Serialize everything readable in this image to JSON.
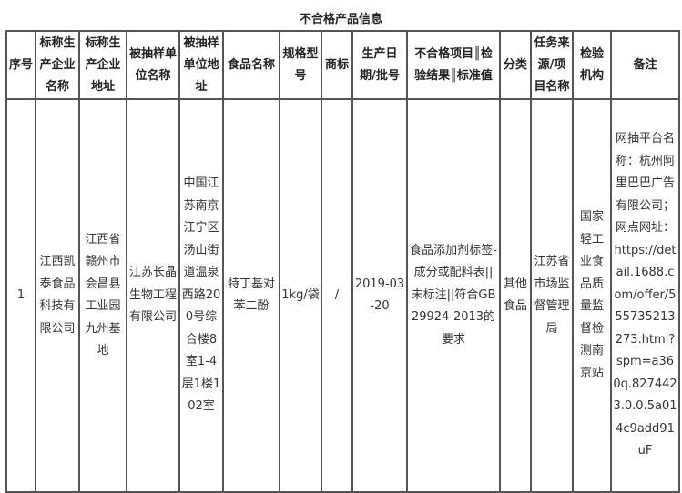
{
  "title": "不合格产品信息",
  "headers": [
    "序号",
    "标称生产企业名称",
    "标称生产企业地址",
    "被抽样单位名称",
    "被抽样单位地址",
    "食品名称",
    "规格型号",
    "商标",
    "生产日期/批号",
    "不合格项目║检验结果║标准值",
    "分类",
    "任务来源/项目名称",
    "检验机构",
    "备注"
  ],
  "rows": [
    [
      "1",
      "江西凯泰食品科技有限公司",
      "江西省赣州市会昌县工业园九州基地",
      "江苏长晶生物工程有限公司",
      "中国江苏南京江宁区汤山街道温泉西路200号综合楼8室1-4层1楼102室",
      "特丁基对苯二酚",
      "1kg/袋",
      "/",
      "2019-03-20",
      "食品添加剂标签-成分或配料表||未标注||符合GB29924-2013的要求",
      "其他食品",
      "江苏省市场监督管理局",
      "国家轻工业食品质量监督检测南京站",
      "网抽平台名称：杭州阿里巴巴广告有限公司；网点网址：https://detail.1688.com/offer/555735213273.html?spm=a360q.8274423.0.0.5a014c9add91uF"
    ]
  ]
}
